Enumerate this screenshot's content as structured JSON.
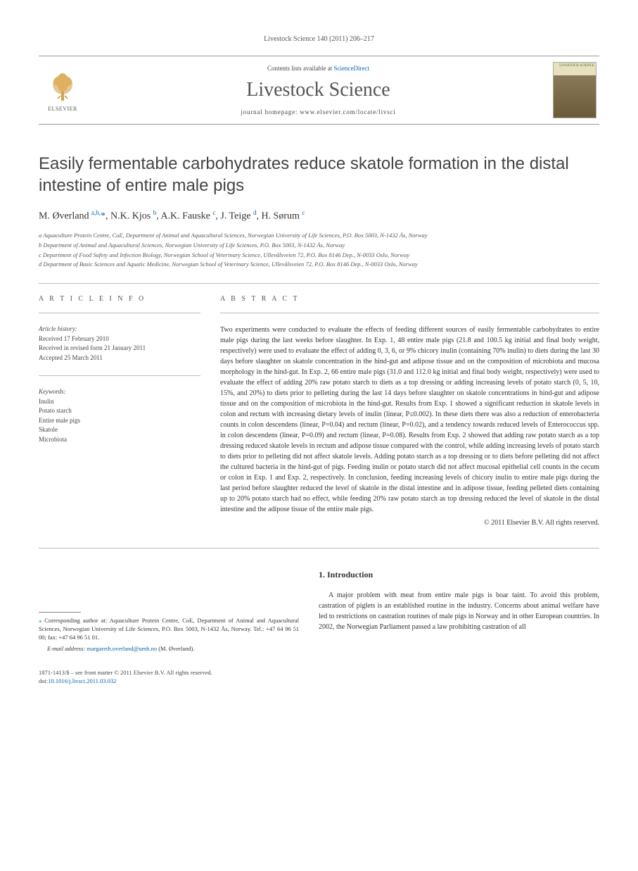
{
  "citation": "Livestock Science 140 (2011) 206–217",
  "header": {
    "contents_prefix": "Contents lists available at ",
    "contents_link": "ScienceDirect",
    "journal": "Livestock Science",
    "homepage_prefix": "journal homepage: ",
    "homepage_url": "www.elsevier.com/locate/livsci",
    "publisher": "ELSEVIER",
    "cover_label": "LIVESTOCK SCIENCE"
  },
  "title": "Easily fermentable carbohydrates reduce skatole formation in the distal intestine of entire male pigs",
  "authors_html": "M. Øverland <sup>a,b,</sup><span class='asterisk'>*</span>, N.K. Kjos <sup>b</sup>, A.K. Fauske <sup>c</sup>, J. Teige <sup>d</sup>, H. Sørum <sup>c</sup>",
  "affiliations": [
    "a  Aquaculture Protein Centre, CoE, Department of Animal and Aquacultural Sciences, Norwegian University of Life Sciences, P.O. Box 5003, N-1432 Ås, Norway",
    "b  Department of Animal and Aquacultural Sciences, Norwegian University of Life Sciences, P.O. Box 5003, N-1432 Ås, Norway",
    "c  Department of Food Safety and Infection Biology, Norwegian School of Veterinary Science, Ullevålsveien 72, P.O. Box 8146 Dep., N-0033 Oslo, Norway",
    "d  Department of Basic Sciences and Aquatic Medicine, Norwegian School of Veterinary Science, Ullevålsveien 72, P.O. Box 8146 Dep., N-0033 Oslo, Norway"
  ],
  "info": {
    "label": "A R T I C L E   I N F O",
    "history_head": "Article history:",
    "history": [
      "Received 17 February 2010",
      "Received in revised form 21 January 2011",
      "Accepted 25 March 2011"
    ],
    "kw_head": "Keywords:",
    "keywords": [
      "Inulin",
      "Potato starch",
      "Entire male pigs",
      "Skatole",
      "Microbiota"
    ]
  },
  "abstract": {
    "label": "A B S T R A C T",
    "text": "Two experiments were conducted to evaluate the effects of feeding different sources of easily fermentable carbohydrates to entire male pigs during the last weeks before slaughter. In Exp. 1, 48 entire male pigs (21.8 and 100.5 kg initial and final body weight, respectively) were used to evaluate the effect of adding 0, 3, 6, or 9% chicory inulin (containing 70% inulin) to diets during the last 30 days before slaughter on skatole concentration in the hind-gut and adipose tissue and on the composition of microbiota and mucosa morphology in the hind-gut. In Exp. 2, 66 entire male pigs (31.0 and 112.0 kg initial and final body weight, respectively) were used to evaluate the effect of adding 20% raw potato starch to diets as a top dressing or adding increasing levels of potato starch (0, 5, 10, 15%, and 20%) to diets prior to pelleting during the last 14 days before slaughter on skatole concentrations in hind-gut and adipose tissue and on the composition of microbiota in the hind-gut. Results from Exp. 1 showed a significant reduction in skatole levels in colon and rectum with increasing dietary levels of inulin (linear, P≤0.002). In these diets there was also a reduction of enterobacteria counts in colon descendens (linear, P=0.04) and rectum (linear, P=0.02), and a tendency towards reduced levels of Enterococcus spp. in colon descendens (linear, P=0.09) and rectum (linear, P=0.08). Results from Exp. 2 showed that adding raw potato starch as a top dressing reduced skatole levels in rectum and adipose tissue compared with the control, while adding increasing levels of potato starch to diets prior to pelleting did not affect skatole levels. Adding potato starch as a top dressing or to diets before pelleting did not affect the cultured bacteria in the hind-gut of pigs. Feeding inulin or potato starch did not affect mucosal epithelial cell counts in the cecum or colon in Exp. 1 and Exp. 2, respectively. In conclusion, feeding increasing levels of chicory inulin to entire male pigs during the last period before slaughter reduced the level of skatole in the distal intestine and in adipose tissue, feeding pelleted diets containing up to 20% potato starch had no effect, while feeding 20% raw potato starch as top dressing reduced the level of skatole in the distal intestine and the adipose tissue of the entire male pigs.",
    "copyright": "© 2011 Elsevier B.V. All rights reserved."
  },
  "intro": {
    "head": "1. Introduction",
    "para": "A major problem with meat from entire male pigs is boar taint. To avoid this problem, castration of piglets is an established routine in the industry. Concerns about animal welfare have led to restrictions on castration routines of male pigs in Norway and in other European countries. In 2002, the Norwegian Parliament passed a law prohibiting castration of all"
  },
  "corresponding": {
    "text": "Corresponding author at: Aquaculture Protein Centre, CoE, Department of Animal and Aquacultural Sciences, Norwegian University of Life Sciences, P.O. Box 5003, N-1432 Ås, Norway. Tel.: +47 64 96 51 00; fax: +47 64 96 51 01.",
    "email_label": "E-mail address: ",
    "email": "margareth.overland@umb.no",
    "email_who": " (M. Øverland)."
  },
  "footer": {
    "issn": "1871-1413/$ – see front matter © 2011 Elsevier B.V. All rights reserved.",
    "doi_prefix": "doi:",
    "doi": "10.1016/j.livsci.2011.03.032"
  },
  "colors": {
    "link": "#0066aa",
    "text": "#333333",
    "muted": "#555555",
    "rule": "#bbbbbb"
  }
}
